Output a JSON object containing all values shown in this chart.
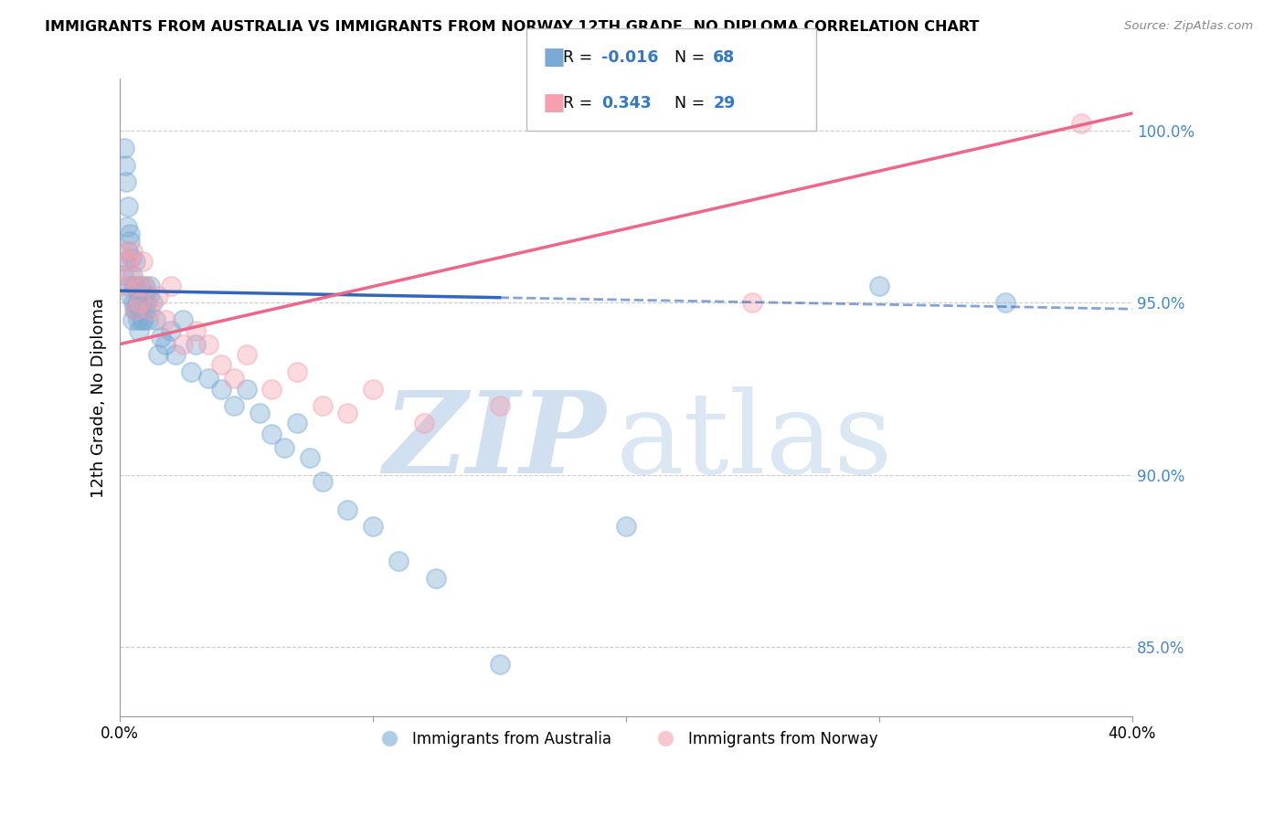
{
  "title": "IMMIGRANTS FROM AUSTRALIA VS IMMIGRANTS FROM NORWAY 12TH GRADE, NO DIPLOMA CORRELATION CHART",
  "source": "Source: ZipAtlas.com",
  "ylabel": "12th Grade, No Diploma",
  "xlim": [
    0.0,
    40.0
  ],
  "ylim": [
    83.0,
    101.5
  ],
  "yticks": [
    85.0,
    90.0,
    95.0,
    100.0
  ],
  "ytick_labels": [
    "85.0%",
    "90.0%",
    "95.0%",
    "100.0%"
  ],
  "legend_label_blue": "Immigrants from Australia",
  "legend_label_pink": "Immigrants from Norway",
  "blue_color": "#7AAAD4",
  "pink_color": "#F4A0B0",
  "blue_line_color": "#3366BB",
  "pink_line_color": "#EE6688",
  "watermark_color": "#DDEEFF",
  "blue_line_x0": 0.0,
  "blue_line_y0": 95.35,
  "blue_line_x1": 40.0,
  "blue_line_y1": 94.82,
  "blue_solid_end_x": 15.0,
  "pink_line_x0": 0.0,
  "pink_line_y0": 93.8,
  "pink_line_x1": 40.0,
  "pink_line_y1": 100.5,
  "australia_x": [
    0.15,
    0.18,
    0.2,
    0.22,
    0.25,
    0.28,
    0.3,
    0.32,
    0.35,
    0.38,
    0.4,
    0.42,
    0.45,
    0.48,
    0.5,
    0.52,
    0.55,
    0.58,
    0.6,
    0.62,
    0.65,
    0.68,
    0.7,
    0.72,
    0.75,
    0.78,
    0.8,
    0.82,
    0.85,
    0.88,
    0.9,
    0.92,
    0.95,
    0.98,
    1.0,
    1.05,
    1.1,
    1.15,
    1.2,
    1.3,
    1.4,
    1.5,
    1.6,
    1.8,
    2.0,
    2.2,
    2.5,
    2.8,
    3.0,
    3.5,
    4.0,
    4.5,
    5.0,
    5.5,
    6.0,
    6.5,
    7.0,
    7.5,
    8.0,
    9.0,
    10.0,
    11.0,
    12.5,
    15.0,
    20.0,
    30.0,
    35.0
  ],
  "australia_y": [
    95.8,
    99.5,
    96.2,
    99.0,
    98.5,
    97.2,
    97.8,
    96.5,
    95.5,
    96.8,
    97.0,
    95.2,
    96.3,
    95.8,
    94.5,
    95.0,
    95.5,
    94.8,
    96.2,
    95.5,
    94.8,
    95.0,
    95.3,
    94.5,
    94.2,
    95.0,
    94.8,
    95.5,
    94.5,
    95.2,
    95.0,
    94.5,
    95.2,
    95.5,
    94.8,
    95.0,
    94.5,
    95.2,
    95.5,
    95.0,
    94.5,
    93.5,
    94.0,
    93.8,
    94.2,
    93.5,
    94.5,
    93.0,
    93.8,
    92.8,
    92.5,
    92.0,
    92.5,
    91.8,
    91.2,
    90.8,
    91.5,
    90.5,
    89.8,
    89.0,
    88.5,
    87.5,
    87.0,
    84.5,
    88.5,
    95.5,
    95.0
  ],
  "norway_x": [
    0.15,
    0.2,
    0.3,
    0.4,
    0.5,
    0.6,
    0.7,
    0.8,
    0.9,
    1.0,
    1.2,
    1.5,
    1.8,
    2.0,
    2.5,
    3.0,
    3.5,
    4.0,
    4.5,
    5.0,
    6.0,
    7.0,
    8.0,
    9.0,
    10.0,
    12.0,
    15.0,
    25.0,
    38.0
  ],
  "norway_y": [
    96.5,
    95.5,
    96.2,
    95.8,
    96.5,
    94.8,
    95.5,
    95.0,
    96.2,
    95.5,
    94.8,
    95.2,
    94.5,
    95.5,
    93.8,
    94.2,
    93.8,
    93.2,
    92.8,
    93.5,
    92.5,
    93.0,
    92.0,
    91.8,
    92.5,
    91.5,
    92.0,
    95.0,
    100.2
  ]
}
